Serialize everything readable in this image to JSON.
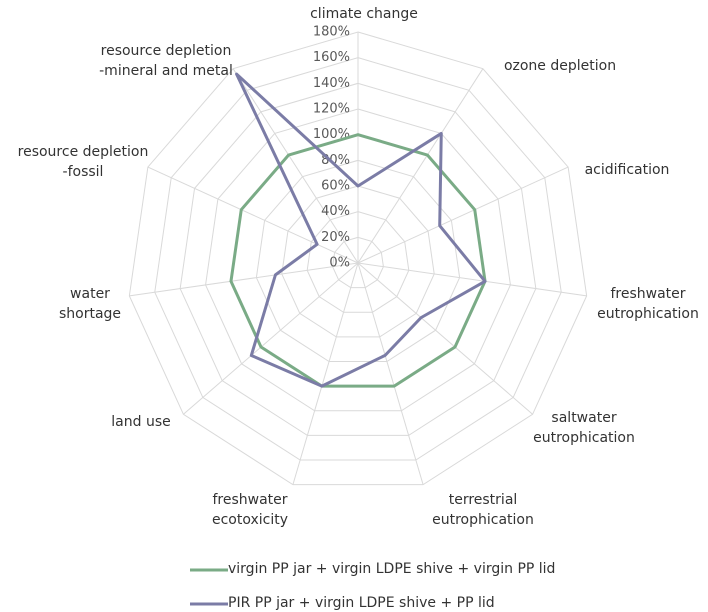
{
  "chart_data": {
    "type": "radar",
    "categories": [
      "climate change",
      "ozone depletion",
      "acidification",
      "freshwater\neutrophication",
      "saltwater\neutrophication",
      "terrestrial\neutrophication",
      "freshwater\necotoxicity",
      "land use",
      "water\nshortage",
      "resource depletion\n-fossil",
      "resource depletion\n-mineral and metal"
    ],
    "series": [
      {
        "name": "virgin PP jar + virgin LDPE shive + virgin PP lid",
        "color": "#7aab86",
        "values": [
          100,
          100,
          100,
          100,
          100,
          100,
          100,
          100,
          100,
          100,
          100
        ]
      },
      {
        "name": "PIR PP jar + virgin LDPE shive + PP lid",
        "color": "#7b7ca6",
        "values": [
          60,
          120,
          70,
          100,
          65,
          75,
          100,
          110,
          65,
          35,
          175
        ]
      }
    ],
    "ylim": [
      0,
      180
    ],
    "yticks": [
      {
        "value": 0,
        "label": "0%"
      },
      {
        "value": 20,
        "label": "20%"
      },
      {
        "value": 40,
        "label": "40%"
      },
      {
        "value": 60,
        "label": "60%"
      },
      {
        "value": 80,
        "label": "80%"
      },
      {
        "value": 100,
        "label": "100%"
      },
      {
        "value": 120,
        "label": "120%"
      },
      {
        "value": 140,
        "label": "140%"
      },
      {
        "value": 160,
        "label": "160%"
      },
      {
        "value": 180,
        "label": "180%"
      }
    ],
    "grid": true
  }
}
